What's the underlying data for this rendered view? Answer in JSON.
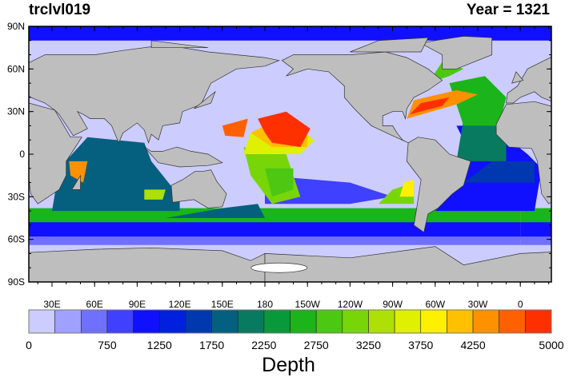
{
  "title_left": "trclvl019",
  "title_right": "Year = 1321",
  "lat_labels": [
    "90N",
    "60N",
    "30N",
    "0",
    "30S",
    "60S",
    "90S"
  ],
  "lat_values": [
    90,
    60,
    30,
    0,
    -30,
    -60,
    -90
  ],
  "lon_labels": [
    "30E",
    "60E",
    "90E",
    "120E",
    "150E",
    "180",
    "150W",
    "120W",
    "90W",
    "60W",
    "30W",
    "0"
  ],
  "lon_values": [
    30,
    60,
    90,
    120,
    150,
    180,
    210,
    240,
    270,
    300,
    330,
    360
  ],
  "colorbar": {
    "title": "Depth",
    "colors": [
      "#ccccff",
      "#a0a0ff",
      "#7070ff",
      "#4040ff",
      "#1010ff",
      "#0020e0",
      "#0038b0",
      "#056080",
      "#077a60",
      "#08993a",
      "#1bb41a",
      "#4cc812",
      "#78d608",
      "#aee008",
      "#dff000",
      "#fff000",
      "#ffc000",
      "#ff9000",
      "#ff6000",
      "#ff3000"
    ],
    "labels": [
      "0",
      "750",
      "1250",
      "1750",
      "2250",
      "2750",
      "3250",
      "3750",
      "4250",
      "5000"
    ],
    "label_values": [
      0,
      750,
      1250,
      1750,
      2250,
      2750,
      3250,
      3750,
      4250,
      5000
    ],
    "min": 0,
    "max": 5000
  },
  "colors": {
    "land": "#bebebe",
    "ocean": "#ccccff",
    "ice": "#ffffff"
  }
}
